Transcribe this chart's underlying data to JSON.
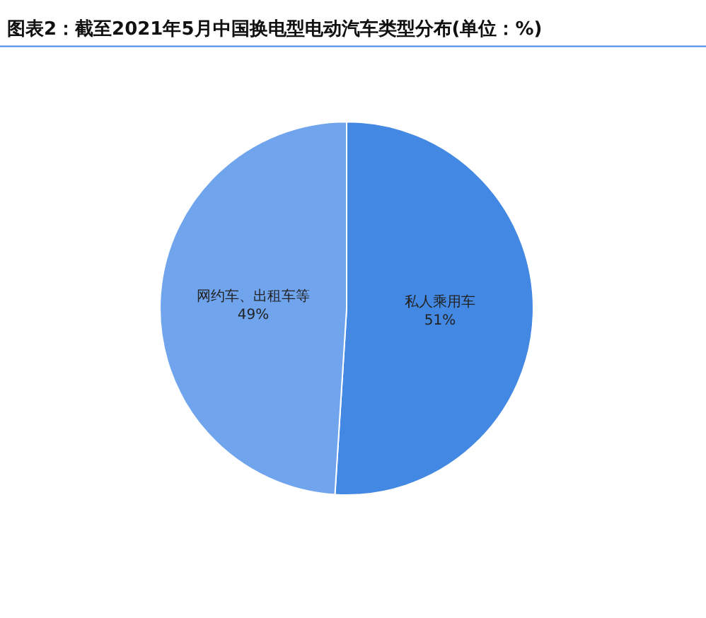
{
  "chart_data": {
    "type": "pie",
    "title": "图表2：截至2021年5月中国换电型电动汽车类型分布(单位：%)",
    "categories": [
      "私人乘用车",
      "网约车、出租车等"
    ],
    "values": [
      51,
      49
    ],
    "value_labels": [
      "51%",
      "49%"
    ],
    "colors": [
      "#4389e3",
      "#70a5ee"
    ],
    "legend": false
  }
}
